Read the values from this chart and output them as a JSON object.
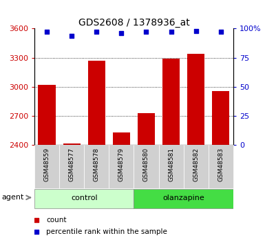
{
  "title": "GDS2608 / 1378936_at",
  "categories": [
    "GSM48559",
    "GSM48577",
    "GSM48578",
    "GSM48579",
    "GSM48580",
    "GSM48581",
    "GSM48582",
    "GSM48583"
  ],
  "counts": [
    3020,
    2420,
    3270,
    2530,
    2730,
    3290,
    3340,
    2960
  ],
  "percentile_ranks": [
    97,
    94,
    97,
    96,
    97,
    97,
    98,
    97
  ],
  "groups": [
    "control",
    "control",
    "control",
    "control",
    "olanzapine",
    "olanzapine",
    "olanzapine",
    "olanzapine"
  ],
  "bar_color": "#cc0000",
  "dot_color": "#0000cc",
  "ylim_left": [
    2400,
    3600
  ],
  "yticks_left": [
    2400,
    2700,
    3000,
    3300,
    3600
  ],
  "ylim_right": [
    0,
    100
  ],
  "yticks_right": [
    0,
    25,
    50,
    75,
    100
  ],
  "ytick_labels_right": [
    "0",
    "25",
    "50",
    "75",
    "100%"
  ],
  "group_colors": {
    "control": "#ccffcc",
    "olanzapine": "#66ee66"
  },
  "left_axis_color": "#cc0000",
  "right_axis_color": "#0000cc",
  "agent_label": "agent",
  "bar_width": 0.7,
  "xtick_bg_color": "#d0d0d0",
  "group_strip_color_control": "#ccffcc",
  "group_strip_color_olanzapine": "#44dd44"
}
